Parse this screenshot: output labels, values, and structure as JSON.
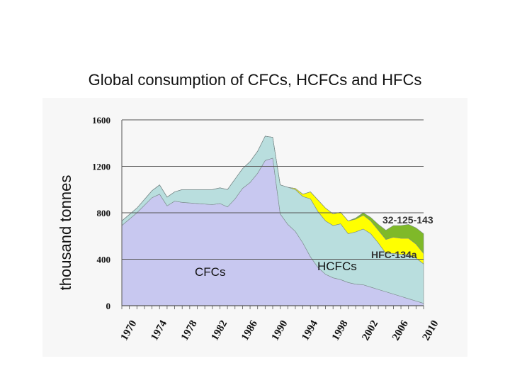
{
  "page": {
    "title": "Global consumption of CFCs, HCFCs and HFCs"
  },
  "chart_data": {
    "type": "area",
    "stacked": true,
    "title": "Global consumption of CFCs, HCFCs and HFCs",
    "ylabel": "thousand tonnes",
    "xlabel": "",
    "ylim": [
      0,
      1600
    ],
    "xlim": [
      1970,
      2010
    ],
    "y_ticks": [
      "0",
      "400",
      "800",
      "1200",
      "1600"
    ],
    "x_ticks": [
      "1970",
      "1974",
      "1978",
      "1982",
      "1986",
      "1990",
      "1994",
      "1998",
      "2002",
      "2006",
      "2010"
    ],
    "grid": "horizontal",
    "x": [
      1970,
      1972,
      1974,
      1975,
      1976,
      1977,
      1978,
      1980,
      1982,
      1983,
      1984,
      1985,
      1986,
      1987,
      1988,
      1989,
      1990,
      1991,
      1992,
      1993,
      1994,
      1995,
      1996,
      1997,
      1998,
      1999,
      2000,
      2001,
      2002,
      2003,
      2004,
      2005,
      2006,
      2007,
      2008,
      2009,
      2010
    ],
    "series": [
      {
        "name": "CFCs",
        "color": "#c8c8f0",
        "values": [
          690,
          800,
          930,
          960,
          860,
          900,
          890,
          880,
          870,
          880,
          850,
          920,
          1010,
          1060,
          1140,
          1250,
          1270,
          790,
          700,
          640,
          540,
          420,
          330,
          270,
          240,
          225,
          200,
          185,
          180,
          160,
          140,
          120,
          100,
          80,
          60,
          40,
          20
        ]
      },
      {
        "name": "HCFCs",
        "color": "#b9dede",
        "values": [
          40,
          40,
          60,
          80,
          75,
          80,
          110,
          120,
          130,
          135,
          150,
          170,
          170,
          180,
          190,
          210,
          180,
          250,
          320,
          360,
          400,
          500,
          480,
          460,
          450,
          480,
          420,
          450,
          480,
          460,
          400,
          330,
          350,
          360,
          380,
          370,
          340
        ]
      },
      {
        "name": "HFC-134a",
        "color": "#ffff00",
        "values": [
          0,
          0,
          0,
          0,
          0,
          0,
          0,
          0,
          0,
          0,
          0,
          0,
          0,
          0,
          0,
          0,
          0,
          0,
          0,
          10,
          20,
          60,
          100,
          110,
          100,
          100,
          110,
          110,
          120,
          110,
          110,
          120,
          140,
          140,
          140,
          120,
          90
        ]
      },
      {
        "name": "32-125-143",
        "color": "#7fb929",
        "values": [
          0,
          0,
          0,
          0,
          0,
          0,
          0,
          0,
          0,
          0,
          0,
          0,
          0,
          0,
          0,
          0,
          0,
          0,
          0,
          0,
          0,
          0,
          0,
          0,
          0,
          0,
          0,
          10,
          20,
          30,
          50,
          80,
          100,
          110,
          120,
          140,
          170
        ]
      }
    ],
    "labels": {
      "cfcs": "CFCs",
      "hcfcs": "HCFCs",
      "hfc134a": "HFC-134a",
      "hfc_blend": "32-125-143"
    }
  }
}
